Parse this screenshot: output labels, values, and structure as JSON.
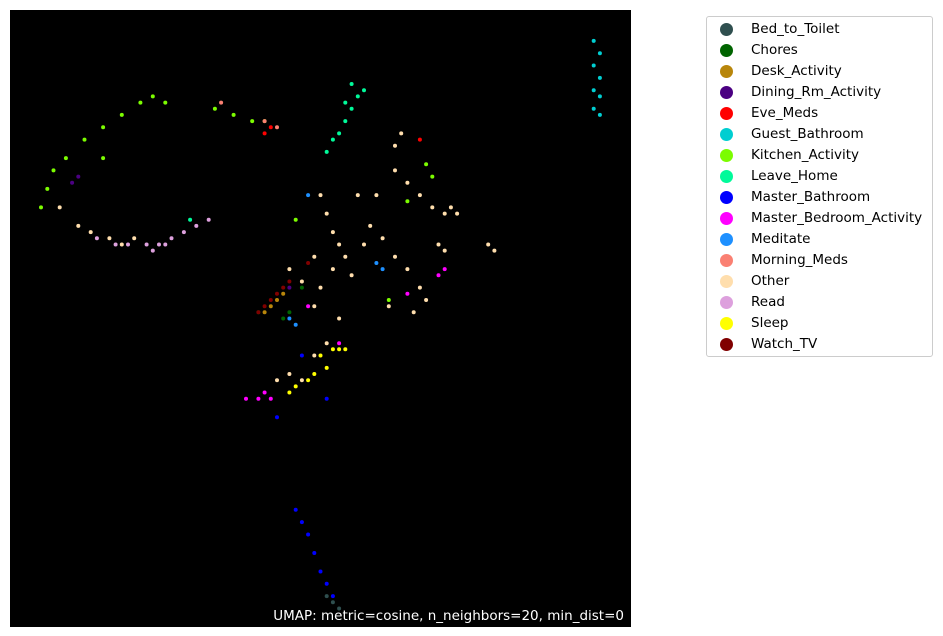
{
  "chart_data": {
    "type": "scatter",
    "background": "#000000",
    "annotation": "UMAP: metric=cosine, n_neighbors=20, min_dist=0",
    "axes_visible": false,
    "grid": false,
    "legend_placement": "outside-right-top",
    "xlim": [
      0,
      100
    ],
    "ylim": [
      0,
      100
    ],
    "series": [
      {
        "name": "Bed_to_Toilet",
        "color": "#2F4F4F",
        "points": [
          [
            52,
            4
          ],
          [
            53,
            3
          ],
          [
            51,
            5
          ]
        ]
      },
      {
        "name": "Chores",
        "color": "#006400",
        "points": [
          [
            44,
            50
          ],
          [
            45,
            51
          ],
          [
            47,
            55
          ],
          [
            40,
            51
          ]
        ]
      },
      {
        "name": "Desk_Activity",
        "color": "#B8860B",
        "points": [
          [
            42,
            52
          ],
          [
            43,
            53
          ],
          [
            44,
            54
          ],
          [
            41,
            51
          ]
        ]
      },
      {
        "name": "Dining_Rm_Activity",
        "color": "#4B0082",
        "points": [
          [
            10,
            72
          ],
          [
            11,
            73
          ],
          [
            45,
            55
          ]
        ]
      },
      {
        "name": "Eve_Meds",
        "color": "#FF0000",
        "points": [
          [
            66,
            79
          ],
          [
            42,
            81
          ],
          [
            41,
            80
          ]
        ]
      },
      {
        "name": "Guest_Bathroom",
        "color": "#00CED1",
        "points": [
          [
            94,
            95
          ],
          [
            95,
            93
          ],
          [
            94,
            91
          ],
          [
            95,
            89
          ],
          [
            94,
            87
          ],
          [
            95,
            86
          ],
          [
            94,
            84
          ],
          [
            95,
            83
          ]
        ]
      },
      {
        "name": "Kitchen_Activity",
        "color": "#7CFC00",
        "points": [
          [
            5,
            68
          ],
          [
            6,
            71
          ],
          [
            7,
            74
          ],
          [
            9,
            76
          ],
          [
            12,
            79
          ],
          [
            15,
            81
          ],
          [
            18,
            83
          ],
          [
            21,
            85
          ],
          [
            23,
            86
          ],
          [
            25,
            85
          ],
          [
            15,
            76
          ],
          [
            33,
            84
          ],
          [
            36,
            83
          ],
          [
            39,
            82
          ],
          [
            41,
            82
          ],
          [
            46,
            66
          ],
          [
            64,
            69
          ],
          [
            67,
            75
          ],
          [
            68,
            73
          ],
          [
            61,
            53
          ]
        ]
      },
      {
        "name": "Leave_Home",
        "color": "#00FA9A",
        "points": [
          [
            53,
            80
          ],
          [
            54,
            82
          ],
          [
            55,
            84
          ],
          [
            56,
            86
          ],
          [
            57,
            87
          ],
          [
            55,
            88
          ],
          [
            54,
            85
          ],
          [
            52,
            79
          ],
          [
            51,
            77
          ],
          [
            29,
            66
          ]
        ]
      },
      {
        "name": "Master_Bathroom",
        "color": "#0000FF",
        "points": [
          [
            46,
            19
          ],
          [
            47,
            17
          ],
          [
            48,
            15
          ],
          [
            49,
            12
          ],
          [
            50,
            9
          ],
          [
            51,
            7
          ],
          [
            52,
            5
          ],
          [
            51,
            37
          ],
          [
            43,
            34
          ],
          [
            47,
            44
          ]
        ]
      },
      {
        "name": "Master_Bedroom_Activity",
        "color": "#FF00FF",
        "points": [
          [
            38,
            37
          ],
          [
            40,
            37
          ],
          [
            41,
            38
          ],
          [
            42,
            37
          ],
          [
            70,
            58
          ],
          [
            69,
            57
          ],
          [
            64,
            54
          ],
          [
            53,
            46
          ],
          [
            48,
            52
          ]
        ]
      },
      {
        "name": "Meditate",
        "color": "#1E90FF",
        "points": [
          [
            59,
            59
          ],
          [
            60,
            58
          ],
          [
            46,
            49
          ],
          [
            45,
            50
          ],
          [
            48,
            70
          ]
        ]
      },
      {
        "name": "Morning_Meds",
        "color": "#FA8072",
        "points": [
          [
            41,
            82
          ],
          [
            34,
            85
          ],
          [
            43,
            81
          ]
        ]
      },
      {
        "name": "Other",
        "color": "#FFDEAD",
        "points": [
          [
            50,
            70
          ],
          [
            51,
            67
          ],
          [
            52,
            64
          ],
          [
            53,
            62
          ],
          [
            54,
            60
          ],
          [
            52,
            58
          ],
          [
            50,
            55
          ],
          [
            49,
            52
          ],
          [
            56,
            70
          ],
          [
            59,
            70
          ],
          [
            62,
            74
          ],
          [
            64,
            72
          ],
          [
            66,
            70
          ],
          [
            68,
            68
          ],
          [
            70,
            67
          ],
          [
            71,
            68
          ],
          [
            72,
            67
          ],
          [
            62,
            60
          ],
          [
            64,
            58
          ],
          [
            66,
            55
          ],
          [
            67,
            53
          ],
          [
            69,
            62
          ],
          [
            70,
            61
          ],
          [
            77,
            62
          ],
          [
            78,
            61
          ],
          [
            45,
            58
          ],
          [
            47,
            56
          ],
          [
            49,
            60
          ],
          [
            55,
            57
          ],
          [
            57,
            62
          ],
          [
            60,
            63
          ],
          [
            63,
            80
          ],
          [
            62,
            78
          ],
          [
            8,
            68
          ],
          [
            11,
            65
          ],
          [
            13,
            64
          ],
          [
            16,
            63
          ],
          [
            18,
            62
          ],
          [
            20,
            63
          ],
          [
            43,
            40
          ],
          [
            45,
            41
          ],
          [
            47,
            40
          ],
          [
            49,
            44
          ],
          [
            51,
            46
          ],
          [
            53,
            50
          ],
          [
            58,
            65
          ],
          [
            61,
            52
          ],
          [
            65,
            51
          ]
        ]
      },
      {
        "name": "Read",
        "color": "#DDA0DD",
        "points": [
          [
            14,
            63
          ],
          [
            17,
            62
          ],
          [
            19,
            62
          ],
          [
            22,
            62
          ],
          [
            24,
            62
          ],
          [
            26,
            63
          ],
          [
            28,
            64
          ],
          [
            30,
            65
          ],
          [
            32,
            66
          ],
          [
            23,
            61
          ],
          [
            25,
            62
          ]
        ]
      },
      {
        "name": "Sleep",
        "color": "#FFFF00",
        "points": [
          [
            46,
            39
          ],
          [
            48,
            40
          ],
          [
            49,
            41
          ],
          [
            52,
            45
          ],
          [
            53,
            45
          ],
          [
            54,
            45
          ],
          [
            45,
            38
          ],
          [
            51,
            42
          ],
          [
            50,
            44
          ]
        ]
      },
      {
        "name": "Watch_TV",
        "color": "#800000",
        "points": [
          [
            41,
            52
          ],
          [
            42,
            53
          ],
          [
            43,
            54
          ],
          [
            44,
            55
          ],
          [
            45,
            56
          ],
          [
            40,
            51
          ],
          [
            48,
            59
          ]
        ]
      }
    ]
  }
}
